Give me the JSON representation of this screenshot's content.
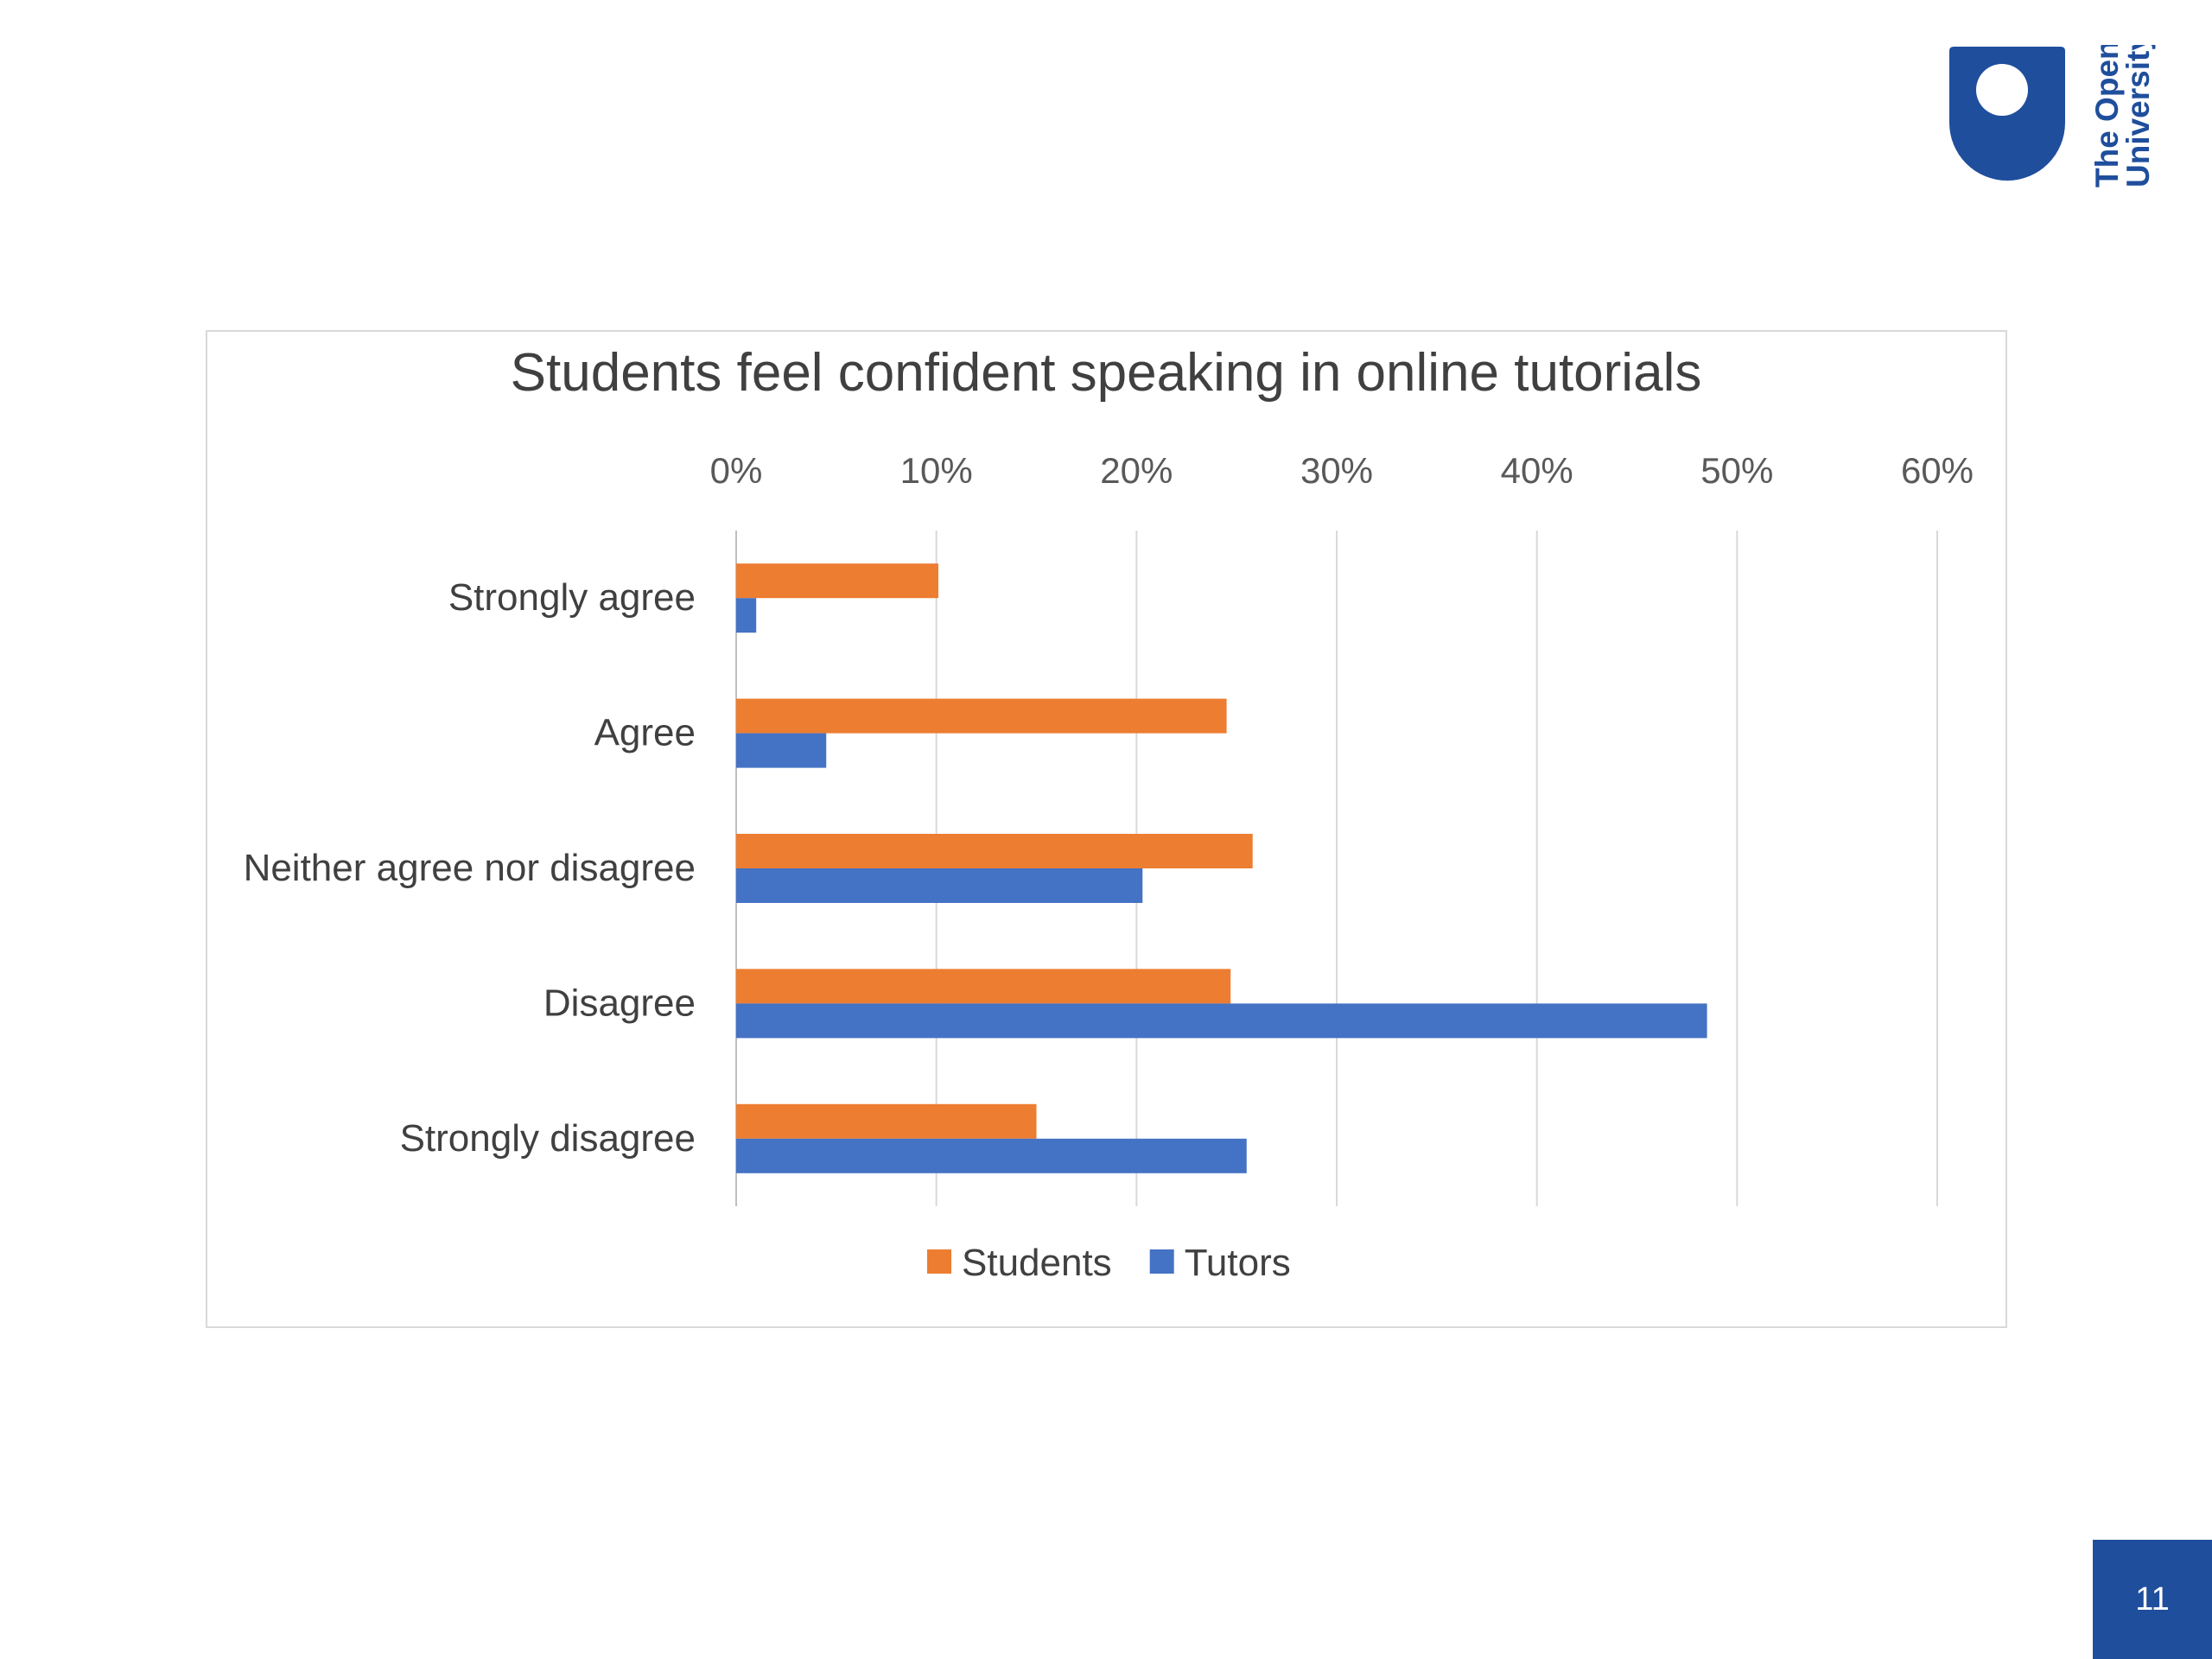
{
  "brand": {
    "logo_line1": "The Open",
    "logo_line2": "University",
    "color": "#1f4e9c"
  },
  "page_number": "11",
  "chart_data": {
    "type": "bar",
    "orientation": "horizontal",
    "title": "Students feel confident speaking in online tutorials",
    "categories": [
      "Strongly agree",
      "Agree",
      "Neither agree nor disagree",
      "Disagree",
      "Strongly disagree"
    ],
    "series": [
      {
        "name": "Students",
        "color": "#ed7d31",
        "values": [
          10.1,
          24.5,
          25.8,
          24.7,
          15.0
        ]
      },
      {
        "name": "Tutors",
        "color": "#4472c4",
        "values": [
          1.0,
          4.5,
          20.3,
          48.5,
          25.5
        ]
      }
    ],
    "x_ticks": [
      "0%",
      "10%",
      "20%",
      "30%",
      "40%",
      "50%",
      "60%"
    ],
    "xlim": [
      0,
      60
    ],
    "x_axis_position": "top",
    "grid": true,
    "legend_position": "bottom",
    "xlabel": "",
    "ylabel": ""
  }
}
